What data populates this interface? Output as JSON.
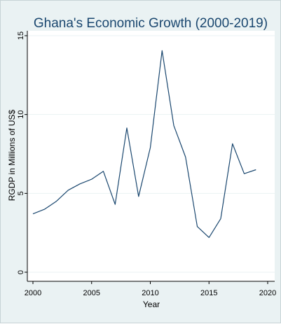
{
  "chart_data": {
    "type": "line",
    "title": "Ghana's Economic Growth (2000-2019)",
    "xlabel": "Year",
    "ylabel": "RGDP in Millions of US$",
    "xlim": [
      2000,
      2020
    ],
    "ylim": [
      0,
      15
    ],
    "xticks": [
      2000,
      2005,
      2010,
      2015,
      2020
    ],
    "yticks": [
      0,
      5,
      10,
      15
    ],
    "grid": true,
    "series": [
      {
        "color": "#1a476f",
        "x": [
          2000,
          2001,
          2002,
          2003,
          2004,
          2005,
          2006,
          2007,
          2008,
          2009,
          2010,
          2011,
          2012,
          2013,
          2014,
          2015,
          2016,
          2017,
          2018,
          2019
        ],
        "values": [
          3.7,
          4.0,
          4.5,
          5.2,
          5.6,
          5.9,
          6.4,
          4.3,
          9.15,
          4.8,
          7.9,
          14.05,
          9.3,
          7.3,
          2.9,
          2.2,
          3.4,
          8.15,
          6.25,
          6.5
        ]
      }
    ]
  }
}
